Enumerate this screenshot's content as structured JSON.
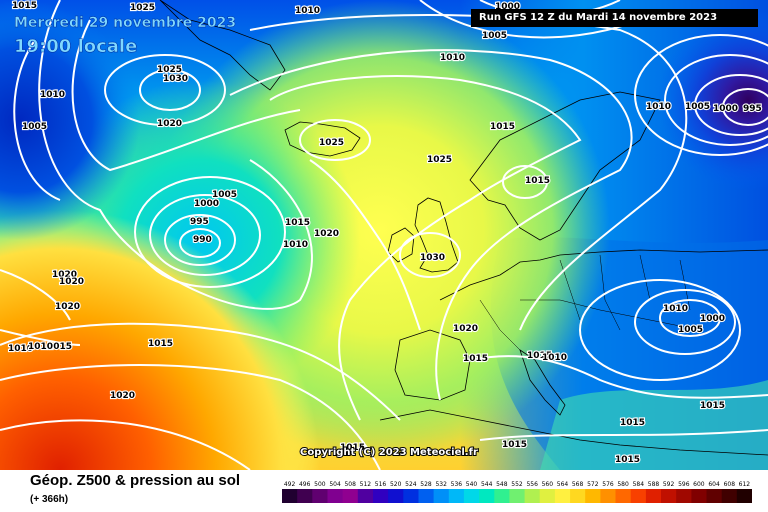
{
  "header": {
    "date_line": "Mercredi 29 novembre 2023",
    "time_line": "19:00 locale",
    "run_banner": "Run GFS 12 Z du Mardi 14 novembre 2023"
  },
  "copyright": "Copyright (C) 2023 Meteociel.fr",
  "footer": {
    "title": "Géop. Z500 & pression au sol",
    "subtitle": "(+ 366h)"
  },
  "scale": {
    "labels": [
      "492",
      "496",
      "500",
      "504",
      "508",
      "512",
      "516",
      "520",
      "524",
      "528",
      "532",
      "536",
      "540",
      "544",
      "548",
      "552",
      "556",
      "560",
      "564",
      "568",
      "572",
      "576",
      "580",
      "584",
      "588",
      "592",
      "596",
      "600",
      "604",
      "608",
      "612"
    ],
    "colors": [
      "#200030",
      "#400050",
      "#600070",
      "#800090",
      "#900090",
      "#5000a0",
      "#3000c0",
      "#1010d0",
      "#0030e0",
      "#0060f0",
      "#0090f8",
      "#00b8f8",
      "#00d8e8",
      "#00e8c0",
      "#30f090",
      "#70f070",
      "#b0f050",
      "#e0f040",
      "#fff040",
      "#ffd820",
      "#ffb800",
      "#ff9000",
      "#ff6800",
      "#f84000",
      "#e02000",
      "#c01000",
      "#a00800",
      "#800000",
      "#600000",
      "#400000",
      "#200000"
    ]
  },
  "isobars": [
    {
      "label": "1015",
      "id": "isobar-label-1015-a"
    },
    {
      "label": "1010",
      "id": "isobar-label-1010-a"
    },
    {
      "label": "1000",
      "id": "isobar-label-1000-a"
    },
    {
      "label": "1005",
      "id": "isobar-label-1005-a"
    },
    {
      "label": "1025",
      "id": "isobar-label-1025-a"
    },
    {
      "label": "1030",
      "id": "isobar-label-1030-a"
    },
    {
      "label": "1010",
      "id": "isobar-label-1010-b"
    },
    {
      "label": "1005",
      "id": "isobar-label-1005-b"
    },
    {
      "label": "1020",
      "id": "isobar-label-1020-a"
    },
    {
      "label": "1010",
      "id": "isobar-label-1010-c"
    },
    {
      "label": "1025",
      "id": "isobar-label-1025-b"
    },
    {
      "label": "1015",
      "id": "isobar-label-1015-b"
    },
    {
      "label": "1010",
      "id": "isobar-label-1010-d"
    },
    {
      "label": "1005",
      "id": "isobar-label-1005-c"
    },
    {
      "label": "1000",
      "id": "isobar-label-1000-b"
    },
    {
      "label": "995",
      "id": "isobar-label-995-a"
    },
    {
      "label": "1005",
      "id": "isobar-label-1005-d"
    },
    {
      "label": "1000",
      "id": "isobar-label-1000-c"
    },
    {
      "label": "995",
      "id": "isobar-label-995-b"
    },
    {
      "label": "990",
      "id": "isobar-label-990"
    },
    {
      "label": "1015",
      "id": "isobar-label-1015-c"
    },
    {
      "label": "1010",
      "id": "isobar-label-1010-e"
    },
    {
      "label": "1020",
      "id": "isobar-label-1020-b"
    },
    {
      "label": "1025",
      "id": "isobar-label-1025-c"
    },
    {
      "label": "1025",
      "id": "isobar-label-1025-d"
    },
    {
      "label": "1030",
      "id": "isobar-label-1030-b"
    },
    {
      "label": "1020",
      "id": "isobar-label-1020-c"
    },
    {
      "label": "1020",
      "id": "isobar-label-1020-d"
    },
    {
      "label": "1020",
      "id": "isobar-label-1020-e"
    },
    {
      "label": "1020",
      "id": "isobar-label-1020-f"
    },
    {
      "label": "1015",
      "id": "isobar-label-1015-d"
    },
    {
      "label": "1015",
      "id": "isobar-label-1015-e"
    },
    {
      "label": "1010",
      "id": "isobar-label-1010-f"
    },
    {
      "label": "1010",
      "id": "isobar-label-1010-g"
    },
    {
      "label": "1010",
      "id": "isobar-label-1010-h"
    },
    {
      "label": "1005",
      "id": "isobar-label-1005-e"
    },
    {
      "label": "1000",
      "id": "isobar-label-1000-d"
    },
    {
      "label": "1015",
      "id": "isobar-label-1015-f"
    },
    {
      "label": "1015",
      "id": "isobar-label-1015-g"
    },
    {
      "label": "1015",
      "id": "isobar-label-1015-h"
    },
    {
      "label": "1015",
      "id": "isobar-label-1015-i"
    },
    {
      "label": "1015",
      "id": "isobar-label-1015-j"
    },
    {
      "label": "1020",
      "id": "isobar-label-1020-g"
    },
    {
      "label": "1015",
      "id": "isobar-label-1015-k"
    },
    {
      "label": "1010",
      "id": "isobar-label-1010-i"
    },
    {
      "label": "1015",
      "id": "isobar-label-1015-l"
    },
    {
      "label": "1015",
      "id": "isobar-label-1015-m"
    }
  ]
}
